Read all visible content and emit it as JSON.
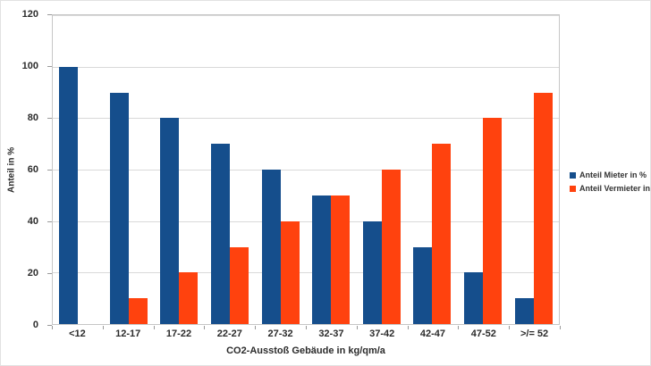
{
  "chart_data": {
    "type": "bar",
    "title": "",
    "categories": [
      "<12",
      "12-17",
      "17-22",
      "22-27",
      "27-32",
      "32-37",
      "37-42",
      "42-47",
      "47-52",
      ">/= 52"
    ],
    "series": [
      {
        "name": "Anteil Mieter in %",
        "color": "#154e8c",
        "values": [
          100,
          90,
          80,
          70,
          60,
          50,
          40,
          30,
          20,
          10
        ]
      },
      {
        "name": "Anteil Vermieter in %",
        "color": "#ff420e",
        "values": [
          0,
          10,
          20,
          30,
          40,
          50,
          60,
          70,
          80,
          90
        ]
      }
    ],
    "xlabel": "CO2-Ausstoß Gebäude in kg/qm/a",
    "ylabel": "Anteil in %",
    "ylim": [
      0,
      120
    ],
    "ytick_step": 20,
    "grid": true,
    "gridline_color": "#d9d9d9",
    "plot_border_color": "#c6c6c6",
    "legend_position": "right"
  }
}
